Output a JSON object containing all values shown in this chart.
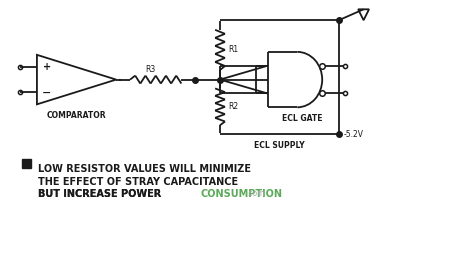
{
  "bg_color": "#ffffff",
  "line_color": "#1a1a1a",
  "comp_label": "COMPARATOR",
  "ecl_gate_label": "ECL GATE",
  "ecl_supply_label": "ECL SUPPLY",
  "r1_label": "R1",
  "r2_label": "R2",
  "r3_label": "R3",
  "voltage_label": "-5.2V",
  "caption_line1": "LOW RESISTOR VALUES WILL MINIMIZE",
  "caption_line2": "THE EFFECT OF STRAY CAPACITANCE",
  "caption_line3_black": "BUT INCREASE POWER ",
  "caption_line3_green": "CONSUMPTION",
  "caption_line3_gray": ".com",
  "caption_color": "#1a1a1a",
  "consumption_color": "#5aaa5a",
  "gray_color": "#aaaaaa"
}
